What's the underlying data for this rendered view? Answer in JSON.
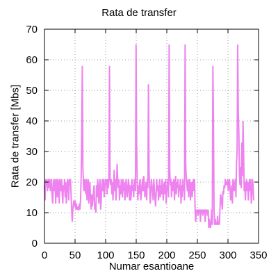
{
  "chart_data": {
    "type": "line",
    "title": "Rata de transfer",
    "xlabel": "Numar esantioane",
    "ylabel": "Rata de transfer [Mbs]",
    "xlim": [
      0,
      350
    ],
    "ylim": [
      0,
      70
    ],
    "xticks": [
      0,
      50,
      100,
      150,
      200,
      250,
      300,
      350
    ],
    "yticks": [
      0,
      10,
      20,
      30,
      40,
      50,
      60,
      70
    ],
    "x_tick_labels": [
      "0",
      "50",
      "100",
      "150",
      "200",
      "250",
      "300",
      "350"
    ],
    "y_tick_labels": [
      "0",
      "10",
      "20",
      "30",
      "40",
      "50",
      "60",
      "70"
    ],
    "grid": true,
    "line_color": "#ee82ee",
    "series": [
      {
        "values": [
          19,
          14,
          21,
          19,
          21,
          17,
          19,
          21,
          18,
          21,
          17,
          19,
          21,
          15,
          13,
          19,
          21,
          17,
          21,
          13,
          19,
          21,
          15,
          21,
          18,
          13,
          21,
          19,
          17,
          21,
          16,
          13,
          19,
          17,
          21,
          15,
          20,
          13,
          17,
          21,
          19,
          14,
          21,
          19,
          21,
          16,
          11,
          7,
          11,
          13,
          14,
          12,
          14,
          11,
          13,
          11,
          12,
          11,
          11,
          13,
          11,
          14,
          21,
          34,
          58,
          25,
          19,
          17,
          21,
          19,
          16,
          21,
          14,
          19,
          21,
          13,
          17,
          20,
          14,
          11,
          16,
          12,
          14,
          17,
          19,
          11,
          13,
          10,
          19,
          15,
          21,
          17,
          13,
          19,
          21,
          11,
          14,
          19,
          21,
          17,
          21,
          15,
          17,
          21,
          19,
          21,
          16,
          21,
          18,
          21,
          58,
          21,
          19,
          21,
          16,
          20,
          14,
          19,
          24,
          17,
          21,
          14,
          19,
          26,
          20,
          18,
          21,
          14,
          19,
          16,
          21,
          18,
          15,
          21,
          17,
          20,
          14,
          16,
          21,
          19,
          15,
          17,
          21,
          19,
          14,
          19,
          14,
          16,
          21,
          17,
          19,
          15,
          21,
          19,
          17,
          65,
          32,
          20,
          14,
          19,
          16,
          20,
          21,
          14,
          16,
          19,
          21,
          17,
          22,
          19,
          15,
          17,
          20,
          14,
          21,
          18,
          52,
          24,
          18,
          13,
          17,
          21,
          19,
          16,
          14,
          21,
          18,
          15,
          12,
          16,
          21,
          17,
          19,
          14,
          17,
          21,
          15,
          19,
          16,
          21,
          18,
          14,
          19,
          20,
          16,
          21,
          13,
          17,
          19,
          21,
          15,
          65,
          24,
          19,
          21,
          15,
          20,
          17,
          19,
          21,
          14,
          19,
          22,
          16,
          20,
          18,
          21,
          15,
          19,
          17,
          21,
          13,
          19,
          15,
          21,
          17,
          19,
          14,
          65,
          26,
          21,
          19,
          17,
          21,
          15,
          19,
          21,
          14,
          18,
          20,
          15,
          19,
          21,
          17,
          21,
          10,
          7,
          11,
          10,
          11,
          9,
          11,
          10,
          11,
          7,
          11,
          10,
          11,
          9,
          11,
          10,
          11,
          7,
          11,
          10,
          11,
          9,
          11,
          5,
          8,
          6,
          5,
          7,
          11,
          6,
          58,
          40,
          11,
          6,
          8,
          6,
          7,
          6,
          9,
          6,
          7,
          6,
          11,
          16,
          15,
          13,
          11,
          17,
          16,
          19,
          18,
          21,
          19,
          20,
          19,
          21,
          17,
          19,
          21,
          18,
          14,
          16,
          19,
          13,
          21,
          20,
          17,
          19,
          21,
          15,
          26,
          30,
          65,
          43,
          36,
          22,
          19,
          25,
          18,
          33,
          22,
          40,
          30,
          17,
          20,
          14,
          19,
          21,
          17,
          20,
          14,
          19,
          21,
          17,
          21,
          13,
          16,
          21,
          19,
          14
        ]
      }
    ]
  }
}
